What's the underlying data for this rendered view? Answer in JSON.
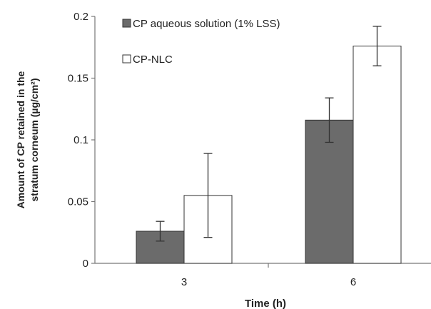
{
  "chart_data": {
    "type": "bar",
    "categories": [
      "3",
      "6"
    ],
    "series": [
      {
        "name": "CP aqueous solution (1% LSS)",
        "values": [
          0.026,
          0.116
        ],
        "errors": [
          0.008,
          0.018
        ],
        "color": "#6b6b6b"
      },
      {
        "name": "CP-NLC",
        "values": [
          0.055,
          0.176
        ],
        "errors": [
          0.034,
          0.016
        ],
        "color": "#ffffff"
      }
    ],
    "xlabel": "Time (h)",
    "ylabel_line1": "Amount of CP retained in the",
    "ylabel_line2": "stratum corneum (µg/cm²)",
    "ylim": [
      0,
      0.2
    ],
    "yticks": [
      "0",
      "0.05",
      "0.1",
      "0.15",
      "0.2"
    ],
    "legend_position": "top-left",
    "grid": false
  }
}
